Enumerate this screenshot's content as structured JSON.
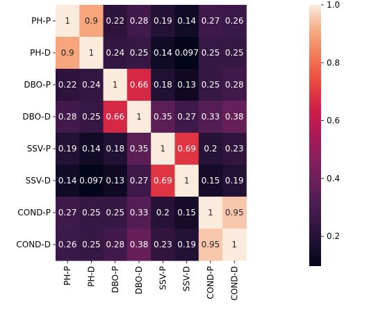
{
  "chart_data": {
    "type": "heatmap",
    "rows": [
      "PH-P",
      "PH-D",
      "DBO-P",
      "DBO-D",
      "SSV-P",
      "SSV-D",
      "COND-P",
      "COND-D"
    ],
    "cols": [
      "PH-P",
      "PH-D",
      "DBO-P",
      "DBO-D",
      "SSV-P",
      "SSV-D",
      "COND-P",
      "COND-D"
    ],
    "values": [
      [
        1,
        0.9,
        0.22,
        0.28,
        0.19,
        0.14,
        0.27,
        0.26
      ],
      [
        0.9,
        1,
        0.24,
        0.25,
        0.14,
        0.097,
        0.25,
        0.25
      ],
      [
        0.22,
        0.24,
        1,
        0.66,
        0.18,
        0.13,
        0.25,
        0.28
      ],
      [
        0.28,
        0.25,
        0.66,
        1,
        0.35,
        0.27,
        0.33,
        0.38
      ],
      [
        0.19,
        0.14,
        0.18,
        0.35,
        1,
        0.69,
        0.2,
        0.23
      ],
      [
        0.14,
        0.097,
        0.13,
        0.27,
        0.69,
        1,
        0.15,
        0.19
      ],
      [
        0.27,
        0.25,
        0.25,
        0.33,
        0.2,
        0.15,
        1,
        0.95
      ],
      [
        0.26,
        0.25,
        0.28,
        0.38,
        0.23,
        0.19,
        0.95,
        1
      ]
    ],
    "annotations": true,
    "colormap": "rocket",
    "colorbar": {
      "vmin": 0.097,
      "vmax": 1,
      "ticks": [
        0.2,
        0.4,
        0.6,
        0.8,
        1.0
      ],
      "tick_labels": [
        "0.2",
        "0.4",
        "0.6",
        "0.8",
        "1.0"
      ]
    }
  }
}
